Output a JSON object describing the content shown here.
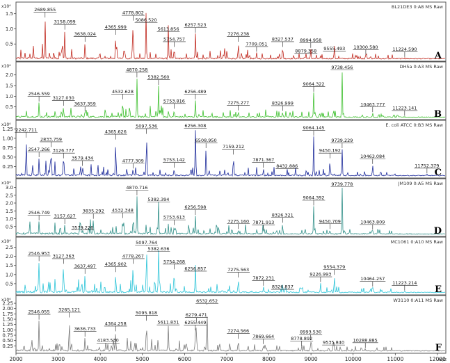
{
  "x_axis": {
    "unit": "m/z",
    "ticks": [
      2000,
      3000,
      4000,
      5000,
      6000,
      7000,
      8000,
      9000,
      10000,
      11000,
      12000
    ],
    "tick_labels": [
      "2000",
      "3000",
      "4000",
      "5000",
      "6000",
      "7000",
      "8000",
      "9000",
      "10000",
      "11000",
      "12000"
    ],
    "min": 2000,
    "max": 12200
  },
  "chart_data": [
    {
      "type": "line",
      "panel": "A",
      "strain_label": "BL21DE3 0:A8 MS Raw",
      "exponent_label": "x10⁴",
      "color": "#c0281e",
      "y_ticks": [
        0,
        0.5,
        1.0,
        1.5
      ],
      "y_tick_labels": [
        "0.5",
        "1.0",
        "1.5"
      ],
      "ylim": [
        0,
        1.7
      ],
      "peaks": [
        {
          "mz": 2689.855,
          "label": "2689.855",
          "h": 1.35
        },
        {
          "mz": 3158.099,
          "label": "3158.099",
          "h": 0.95
        },
        {
          "mz": 3638.024,
          "label": "3638.024",
          "h": 0.55
        },
        {
          "mz": 4365.999,
          "label": "4365.999",
          "h": 0.78
        },
        {
          "mz": 4778.802,
          "label": "4778.802",
          "h": 1.25
        },
        {
          "mz": 5086.52,
          "label": "5086.520",
          "h": 1.52
        },
        {
          "mz": 5613.856,
          "label": "5613.856",
          "h": 1.12
        },
        {
          "mz": 5754.757,
          "label": "5754.757",
          "h": 0.38
        },
        {
          "mz": 6257.523,
          "label": "6257.523",
          "h": 0.85
        },
        {
          "mz": 7276.238,
          "label": "7276.238",
          "h": 0.55
        },
        {
          "mz": 7709.051,
          "label": "7709.051",
          "h": 0.22
        },
        {
          "mz": 8327.537,
          "label": "8327.537",
          "h": 0.38
        },
        {
          "mz": 8879.358,
          "label": "8879.358",
          "h": 0.2
        },
        {
          "mz": 8994.958,
          "label": "8994.958",
          "h": 0.35
        },
        {
          "mz": 9555.493,
          "label": "9555.493",
          "h": 0.48
        },
        {
          "mz": 10300.58,
          "label": "10300.580",
          "h": 0.12
        },
        {
          "mz": 11224.59,
          "label": "11224.590",
          "h": 0.05
        }
      ]
    },
    {
      "type": "line",
      "panel": "B",
      "strain_label": "DH5a 0:A3 MS Raw",
      "exponent_label": "x10⁴",
      "color": "#3cbf2c",
      "y_ticks": [
        0,
        0.5,
        1.0,
        1.5,
        2.0
      ],
      "y_tick_labels": [
        "0.5",
        "1.0",
        "1.5",
        "2.0"
      ],
      "ylim": [
        0,
        2.35
      ],
      "peaks": [
        {
          "mz": 2546.559,
          "label": "2546.559",
          "h": 0.72
        },
        {
          "mz": 3127.03,
          "label": "3127.030",
          "h": 0.52
        },
        {
          "mz": 3637.359,
          "label": "3637.359",
          "h": 0.25
        },
        {
          "mz": 4532.628,
          "label": "4532.628",
          "h": 0.82
        },
        {
          "mz": 4870.258,
          "label": "4870.258",
          "h": 1.85
        },
        {
          "mz": 5382.56,
          "label": "5382.560",
          "h": 1.5
        },
        {
          "mz": 5753.816,
          "label": "5753.816",
          "h": 0.38
        },
        {
          "mz": 6256.489,
          "label": "6256.489",
          "h": 0.82
        },
        {
          "mz": 7275.277,
          "label": "7275.277",
          "h": 0.3
        },
        {
          "mz": 8326.999,
          "label": "8326.999",
          "h": 0.28
        },
        {
          "mz": 9064.322,
          "label": "9064.322",
          "h": 1.18
        },
        {
          "mz": 9738.456,
          "label": "9738.456",
          "h": 2.2
        },
        {
          "mz": 10463.777,
          "label": "10463.777",
          "h": 0.22
        },
        {
          "mz": 11223.141,
          "label": "11223.141",
          "h": 0.05
        }
      ]
    },
    {
      "type": "line",
      "panel": "C",
      "strain_label": "E. coli ATCC 0:B3 MS Raw",
      "exponent_label": "x10⁴",
      "color": "#1c2a9a",
      "y_ticks": [
        0,
        0.25,
        0.5,
        0.75,
        1.0,
        1.25
      ],
      "y_tick_labels": [
        "0.25",
        "0.50",
        "0.75",
        "1.00",
        "1.25"
      ],
      "ylim": [
        0,
        1.33
      ],
      "peaks": [
        {
          "mz": 2242.711,
          "label": "2242.711",
          "h": 1.0
        },
        {
          "mz": 2547.266,
          "label": "2547.266",
          "h": 0.48
        },
        {
          "mz": 2833.759,
          "label": "2833.759",
          "h": 0.75
        },
        {
          "mz": 3126.777,
          "label": "3126.777",
          "h": 0.45
        },
        {
          "mz": 3579.434,
          "label": "3579.434",
          "h": 0.25
        },
        {
          "mz": 4365.626,
          "label": "4365.626",
          "h": 0.95
        },
        {
          "mz": 4777.309,
          "label": "4777.309",
          "h": 0.18
        },
        {
          "mz": 5097.536,
          "label": "5097.536",
          "h": 1.1
        },
        {
          "mz": 5753.142,
          "label": "5753.142",
          "h": 0.2
        },
        {
          "mz": 6256.308,
          "label": "6256.308",
          "h": 1.25
        },
        {
          "mz": 6508.95,
          "label": "6508.950",
          "h": 0.72
        },
        {
          "mz": 7159.212,
          "label": "7159.212",
          "h": 0.55
        },
        {
          "mz": 7871.367,
          "label": "7871.367",
          "h": 0.2
        },
        {
          "mz": 8432.886,
          "label": "8432.886",
          "h": 0.2
        },
        {
          "mz": 9064.145,
          "label": "9064.145",
          "h": 1.05
        },
        {
          "mz": 9450.192,
          "label": "9450.192",
          "h": 0.45
        },
        {
          "mz": 9739.229,
          "label": "9739.229",
          "h": 0.72
        },
        {
          "mz": 10463.084,
          "label": "10463.084",
          "h": 0.3
        },
        {
          "mz": 11752.379,
          "label": "11752.379",
          "h": 0.05
        }
      ]
    },
    {
      "type": "line",
      "panel": "D",
      "strain_label": "JM109 0:A5 MS Raw",
      "exponent_label": "x10⁴",
      "color": "#2f8f88",
      "y_ticks": [
        0,
        0.5,
        1.0,
        1.5,
        2.0,
        2.5,
        3.0
      ],
      "y_tick_labels": [
        "0.5",
        "1.0",
        "1.5",
        "2.0",
        "2.5",
        "3.0"
      ],
      "ylim": [
        0,
        3.2
      ],
      "peaks": [
        {
          "mz": 2546.749,
          "label": "2546.749",
          "h": 0.85
        },
        {
          "mz": 3157.627,
          "label": "3157.627",
          "h": 0.62
        },
        {
          "mz": 3579.226,
          "label": "3579.226",
          "h": 0.3
        },
        {
          "mz": 3835.292,
          "label": "3835.292",
          "h": 0.95
        },
        {
          "mz": 4532.348,
          "label": "4532.348",
          "h": 1.0
        },
        {
          "mz": 4870.716,
          "label": "4870.716",
          "h": 2.45
        },
        {
          "mz": 5382.394,
          "label": "5382.394",
          "h": 2.1
        },
        {
          "mz": 5753.613,
          "label": "5753.613",
          "h": 0.55
        },
        {
          "mz": 6256.598,
          "label": "6256.598",
          "h": 1.2
        },
        {
          "mz": 7275.16,
          "label": "7275.160",
          "h": 0.3
        },
        {
          "mz": 7871.913,
          "label": "7871.913",
          "h": 0.22
        },
        {
          "mz": 8326.321,
          "label": "8326.321",
          "h": 0.7
        },
        {
          "mz": 9064.392,
          "label": "9064.392",
          "h": 1.8
        },
        {
          "mz": 9450.709,
          "label": "9450.709",
          "h": 0.3
        },
        {
          "mz": 9739.778,
          "label": "9739.778",
          "h": 3.0
        },
        {
          "mz": 10463.809,
          "label": "10463.809",
          "h": 0.25
        }
      ]
    },
    {
      "type": "line",
      "panel": "E",
      "strain_label": "MC1061 0:A10 MS Raw",
      "exponent_label": "x10⁴",
      "color": "#2cc4d8",
      "y_ticks": [
        0,
        0.5,
        1.0,
        1.5,
        2.0,
        2.5
      ],
      "y_tick_labels": [
        "0.5",
        "1.0",
        "1.5",
        "2.0",
        "2.5"
      ],
      "ylim": [
        0,
        2.75
      ],
      "peaks": [
        {
          "mz": 2546.953,
          "label": "2546.953",
          "h": 1.7
        },
        {
          "mz": 3127.363,
          "label": "3127.363",
          "h": 1.55
        },
        {
          "mz": 3637.497,
          "label": "3637.497",
          "h": 1.0
        },
        {
          "mz": 4365.902,
          "label": "4365.902",
          "h": 1.1
        },
        {
          "mz": 4778.267,
          "label": "4778.267",
          "h": 1.55
        },
        {
          "mz": 5097.764,
          "label": "5097.764",
          "h": 2.55
        },
        {
          "mz": 5382.636,
          "label": "5382.636",
          "h": 2.35
        },
        {
          "mz": 5754.268,
          "label": "5754.268",
          "h": 1.25
        },
        {
          "mz": 6256.857,
          "label": "6256.857",
          "h": 1.55
        },
        {
          "mz": 7275.563,
          "label": "7275.563",
          "h": 0.8
        },
        {
          "mz": 7872.231,
          "label": "7872.231",
          "h": 0.35
        },
        {
          "mz": 8326.837,
          "label": "8326.837",
          "h": 0.55
        },
        {
          "mz": 9226.993,
          "label": "9226.993",
          "h": 0.55
        },
        {
          "mz": 9554.379,
          "label": "9554.379",
          "h": 0.95
        },
        {
          "mz": 10464.257,
          "label": "10464.257",
          "h": 0.3
        },
        {
          "mz": 11223.214,
          "label": "11223.214",
          "h": 0.08
        }
      ]
    },
    {
      "type": "line",
      "panel": "F",
      "strain_label": "W3110 0:A11 MS Raw",
      "exponent_label": "x10⁴",
      "color": "#7a7a7a",
      "y_ticks": [
        0,
        0.25,
        0.5,
        0.75,
        1.0,
        1.25,
        1.5,
        1.75,
        2.0,
        2.25
      ],
      "y_tick_labels": [
        "0.25",
        "0.50",
        "0.75",
        "1.00",
        "1.25",
        "1.50",
        "1.75",
        "2.00",
        "2.25"
      ],
      "ylim": [
        0,
        2.35
      ],
      "peaks": [
        {
          "mz": 2546.055,
          "label": "2546.055",
          "h": 1.45
        },
        {
          "mz": 3265.121,
          "label": "3265.121",
          "h": 1.55
        },
        {
          "mz": 3636.733,
          "label": "3636.733",
          "h": 0.65
        },
        {
          "mz": 4183.53,
          "label": "4183.530",
          "h": 0.4
        },
        {
          "mz": 4364.258,
          "label": "4364.258",
          "h": 0.9
        },
        {
          "mz": 5095.818,
          "label": "5095.818",
          "h": 1.4
        },
        {
          "mz": 5611.831,
          "label": "5611.831",
          "h": 1.25
        },
        {
          "mz": 6255.449,
          "label": "6255.449",
          "h": 0.95
        },
        {
          "mz": 6279.471,
          "label": "6279.471",
          "h": 1.3
        },
        {
          "mz": 6532.652,
          "label": "6532.652",
          "h": 2.15
        },
        {
          "mz": 7274.566,
          "label": "7274.566",
          "h": 0.55
        },
        {
          "mz": 7869.664,
          "label": "7869.664",
          "h": 0.3
        },
        {
          "mz": 8778.892,
          "label": "8778.892",
          "h": 0.2
        },
        {
          "mz": 8993.53,
          "label": "8993.530",
          "h": 0.5
        },
        {
          "mz": 9535.84,
          "label": "9535.840",
          "h": 0.6
        },
        {
          "mz": 10288.885,
          "label": "10288.885",
          "h": 0.12
        }
      ]
    }
  ]
}
